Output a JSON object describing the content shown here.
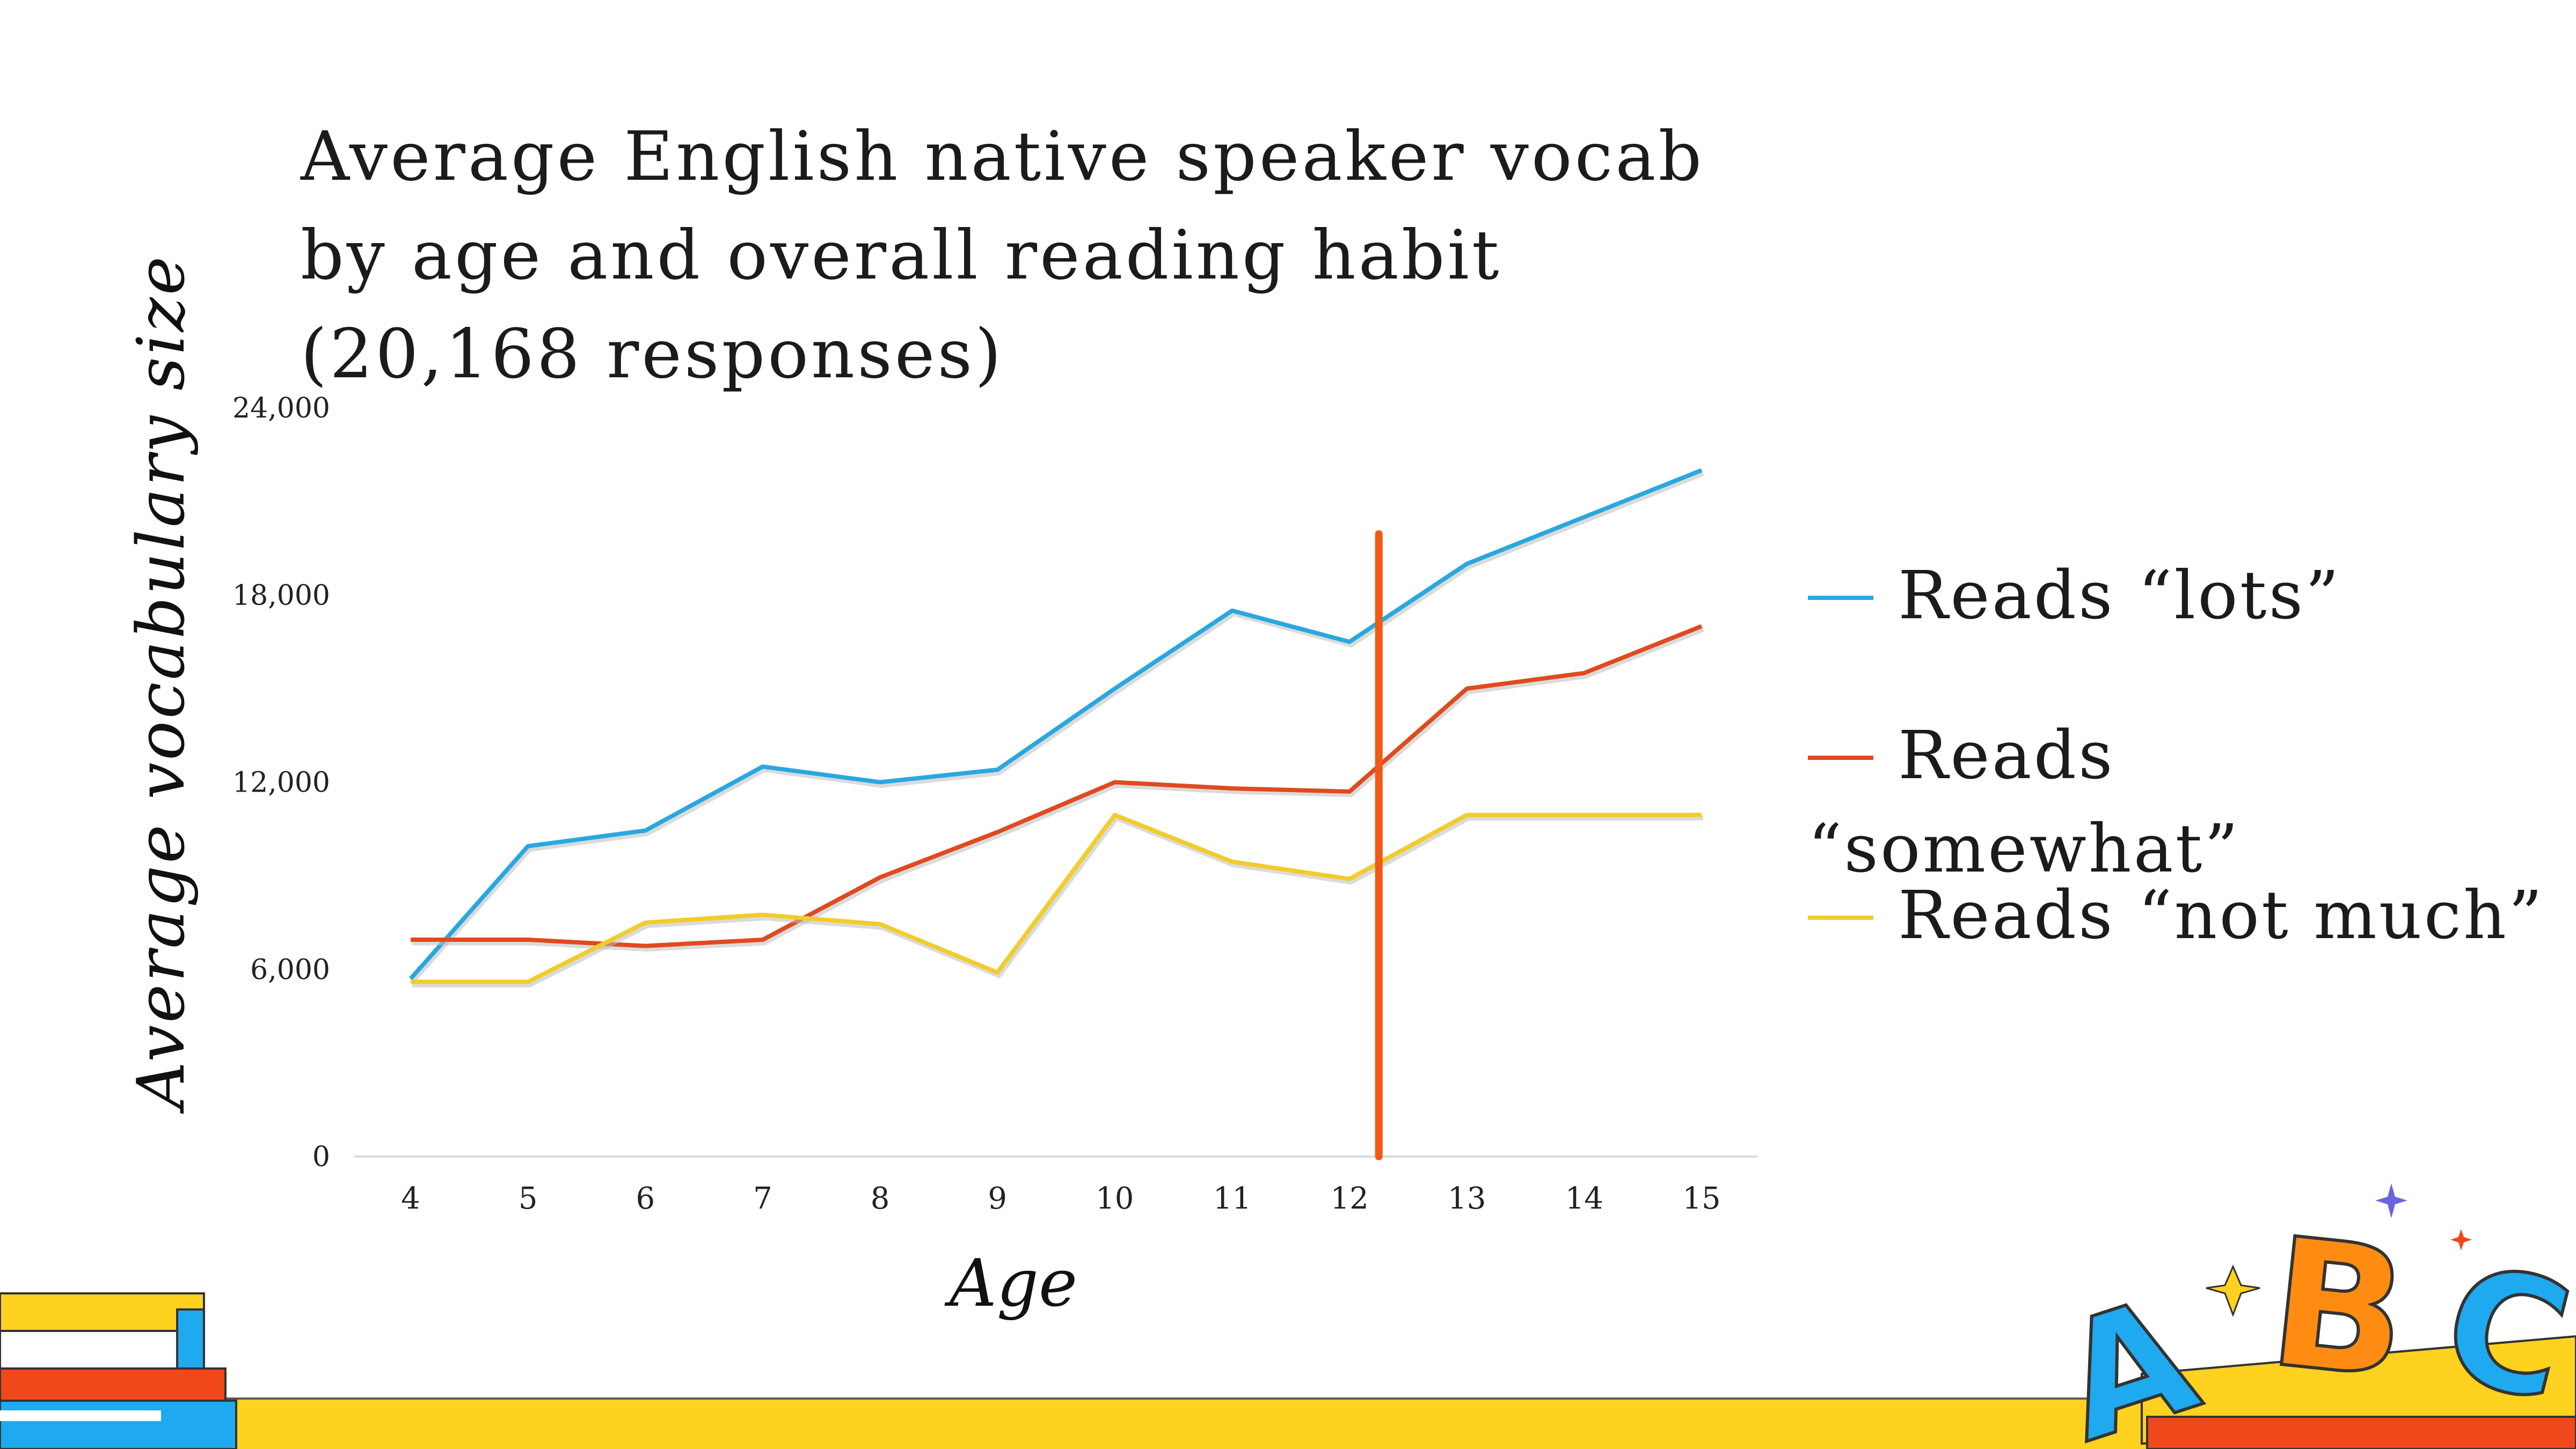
{
  "slide": {
    "title": "Average English native speaker vocab by age and  overall reading habit (20,168 responses)"
  },
  "chart_data": {
    "type": "line",
    "title": "Average English native speaker vocab by age and  overall reading habit (20,168 responses)",
    "xlabel": "Age",
    "ylabel": "Average vocabulary size",
    "categories": [
      "4",
      "5",
      "6",
      "7",
      "8",
      "9",
      "10",
      "11",
      "12",
      "13",
      "14",
      "15"
    ],
    "y_ticks": [
      "0",
      "6,000",
      "12,000",
      "18,000",
      "24,000"
    ],
    "ylim": [
      0,
      24000
    ],
    "grid": false,
    "legend_position": "right",
    "reference_line_x": 12.25,
    "series": [
      {
        "name": "Reads “lots”",
        "color": "#29a8e0",
        "values": [
          5700,
          9950,
          10450,
          12500,
          12000,
          12400,
          15000,
          17500,
          16500,
          19000,
          20500,
          22000
        ]
      },
      {
        "name": "Reads “somewhat”",
        "color": "#e04a1f",
        "values": [
          6950,
          6950,
          6750,
          6950,
          8950,
          10400,
          12000,
          11800,
          11700,
          15000,
          15500,
          17000
        ]
      },
      {
        "name": "Reads “not much”",
        "color": "#f2cc2a",
        "values": [
          5600,
          5600,
          7500,
          7750,
          7450,
          5900,
          10950,
          9450,
          8900,
          10950,
          10950,
          10950
        ]
      }
    ],
    "reference_line_color": "#f05a14"
  },
  "legend": {
    "item_1": "Reads “lots”",
    "item_2_line1": "Reads",
    "item_2_line2": "“somewhat”",
    "item_3": "Reads “not much”"
  },
  "colors": {
    "band_yellow": "#ffd21f",
    "accent_red": "#f0481b",
    "accent_blue": "#1fa9ee",
    "accent_orange": "#ff8c12",
    "accent_purple": "#6c63e0"
  },
  "decorations": {
    "letters": [
      "A",
      "B",
      "C"
    ]
  }
}
